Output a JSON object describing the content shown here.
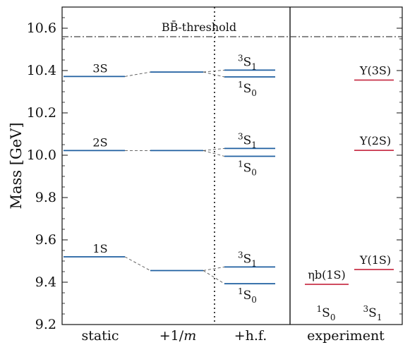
{
  "chart_data": {
    "type": "level-diagram",
    "ylabel": "Mass [GeV]",
    "ylim": [
      9.2,
      10.7
    ],
    "yticks": [
      "9.2",
      "9.4",
      "9.6",
      "9.8",
      "10.0",
      "10.2",
      "10.4",
      "10.6"
    ],
    "ytick_values": [
      9.2,
      9.4,
      9.6,
      9.8,
      10.0,
      10.2,
      10.4,
      10.6
    ],
    "categories": [
      "static",
      "+1/m",
      "+h.f.",
      "experiment"
    ],
    "threshold": {
      "label": "BB̄-threshold",
      "value": 10.56
    },
    "colors": {
      "theory": "#1f5fa0",
      "experiment": "#c8324a",
      "connector": "#555555"
    },
    "levels": {
      "static": [
        {
          "label": "1S",
          "value": 9.52
        },
        {
          "label": "2S",
          "value": 10.022
        },
        {
          "label": "3S",
          "value": 10.372
        }
      ],
      "plus_1_over_m": [
        {
          "value": 9.455
        },
        {
          "value": 10.022
        },
        {
          "value": 10.393
        }
      ],
      "plus_hf": [
        {
          "label": "3S1",
          "state": "1S",
          "value": 9.472
        },
        {
          "label": "1S0",
          "state": "1S",
          "value": 9.393
        },
        {
          "label": "3S1",
          "state": "2S",
          "value": 10.032
        },
        {
          "label": "1S0",
          "state": "2S",
          "value": 9.995
        },
        {
          "label": "3S1",
          "state": "3S",
          "value": 10.402
        },
        {
          "label": "1S0",
          "state": "3S",
          "value": 10.37
        }
      ],
      "experiment": [
        {
          "label": "ηb(1S)",
          "value": 9.39
        },
        {
          "label": "Υ(1S)",
          "value": 9.46
        },
        {
          "label": "Υ(2S)",
          "value": 10.023
        },
        {
          "label": "Υ(3S)",
          "value": 10.355
        }
      ]
    },
    "experiment_spin_labels": [
      "1S0",
      "3S1"
    ]
  }
}
